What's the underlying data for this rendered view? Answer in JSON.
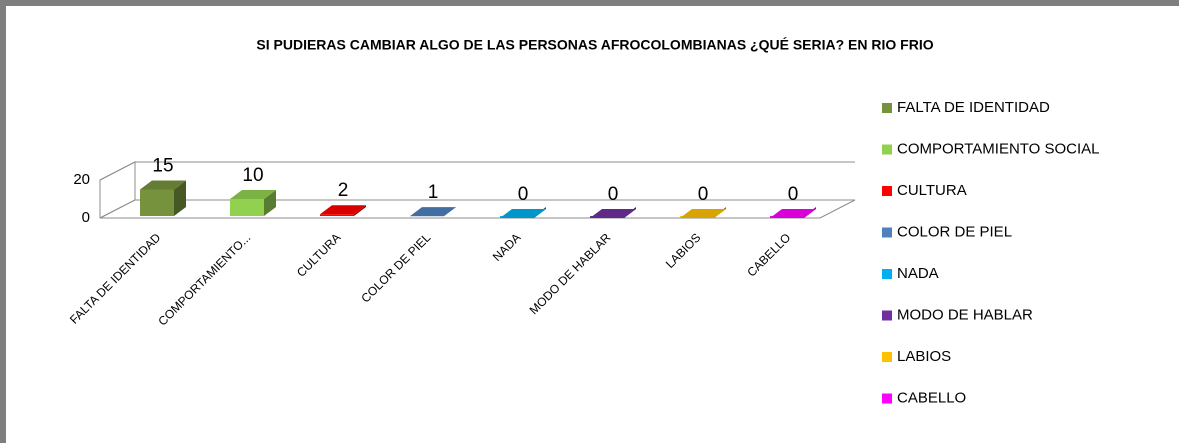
{
  "chart_data": {
    "type": "bar3d",
    "title": "SI PUDIERAS CAMBIAR ALGO DE LAS PERSONAS AFROCOLOMBIANAS ¿QUÉ SERIA? EN RIO FRIO",
    "categories": [
      "FALTA DE IDENTIDAD",
      "COMPORTAMIENTO SOCIAL",
      "CULTURA",
      "COLOR DE PIEL",
      "NADA",
      "MODO DE HABLAR",
      "LABIOS",
      "CABELLO"
    ],
    "x_tick_labels": [
      "FALTA DE IDENTIDAD",
      "COMPORTAMIENTO...",
      "CULTURA",
      "COLOR DE PIEL",
      "NADA",
      "MODO DE HABLAR",
      "LABIOS",
      "CABELLO"
    ],
    "values": [
      15,
      10,
      2,
      1,
      0,
      0,
      0,
      0
    ],
    "colors": [
      "#76923c",
      "#92d050",
      "#ff0000",
      "#4f81bd",
      "#00b0f0",
      "#7030a0",
      "#ffc000",
      "#ff00ff"
    ],
    "ylim": [
      0,
      20
    ],
    "yticks": [
      0,
      20
    ],
    "legend": "right"
  }
}
